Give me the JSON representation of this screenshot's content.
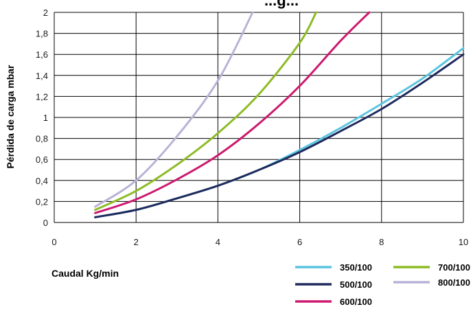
{
  "chart_data": {
    "type": "line",
    "title": "...g...",
    "xlabel": "Caudal Kg/min",
    "ylabel": "Pérdida de carga mbar",
    "xlim": [
      0,
      10
    ],
    "ylim": [
      0,
      2
    ],
    "x_ticks": [
      "0",
      "2",
      "4",
      "6",
      "8",
      "10"
    ],
    "y_ticks": [
      "0",
      "0,2",
      "0,4",
      "0,6",
      "0,8",
      "1",
      "1,2",
      "1,4",
      "1,6",
      "1,8",
      "2"
    ],
    "grid": true,
    "legend_position": "bottom-right",
    "series": [
      {
        "name": "350/100",
        "color": "#5bc4e0",
        "x": [
          1,
          2,
          3,
          4,
          5,
          6,
          7,
          8,
          9,
          10
        ],
        "y": [
          0.05,
          0.12,
          0.23,
          0.35,
          0.5,
          0.69,
          0.9,
          1.13,
          1.37,
          1.66
        ]
      },
      {
        "name": "500/100",
        "color": "#1f2a5c",
        "x": [
          1,
          2,
          3,
          4,
          5,
          6,
          7,
          8,
          9,
          10
        ],
        "y": [
          0.05,
          0.12,
          0.23,
          0.35,
          0.5,
          0.67,
          0.87,
          1.08,
          1.33,
          1.6
        ]
      },
      {
        "name": "600/100",
        "color": "#cc1a6f",
        "x": [
          1,
          2,
          3,
          4,
          5,
          6,
          7,
          7.7
        ],
        "y": [
          0.09,
          0.22,
          0.41,
          0.64,
          0.94,
          1.3,
          1.73,
          2.0
        ]
      },
      {
        "name": "700/100",
        "color": "#8dbb25",
        "x": [
          1,
          2,
          3,
          4,
          5,
          6,
          6.4
        ],
        "y": [
          0.12,
          0.3,
          0.55,
          0.85,
          1.22,
          1.71,
          2.0
        ]
      },
      {
        "name": "800/100",
        "color": "#b8b3d6",
        "x": [
          1,
          2,
          3,
          4,
          4.85
        ],
        "y": [
          0.15,
          0.4,
          0.82,
          1.35,
          2.0
        ]
      }
    ]
  }
}
